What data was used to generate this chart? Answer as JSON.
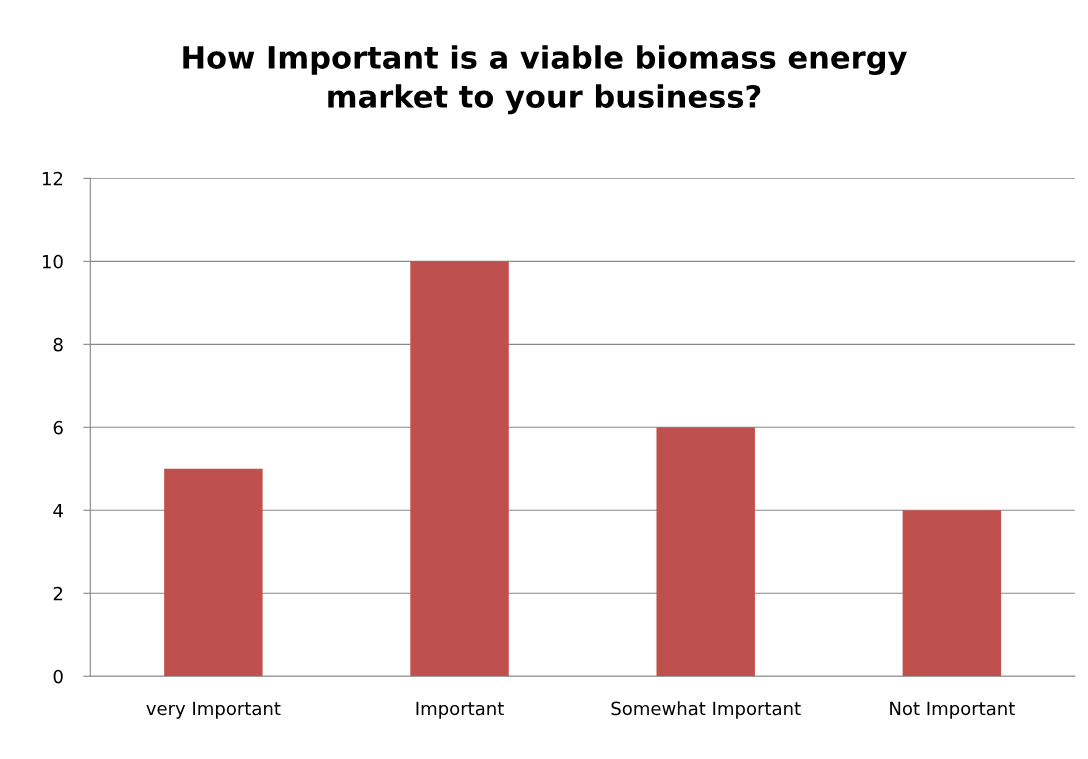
{
  "chart_data": {
    "type": "bar",
    "title": "How Important is a viable biomass energy\nmarket to your business?",
    "categories": [
      "very Important",
      "Important",
      "Somewhat Important",
      "Not Important"
    ],
    "values": [
      5,
      10,
      6,
      4
    ],
    "color": "#c0504d",
    "ylim": [
      0,
      12
    ],
    "yticks": [
      0,
      2,
      4,
      6,
      8,
      10,
      12
    ],
    "grid": "y",
    "legend": false
  }
}
